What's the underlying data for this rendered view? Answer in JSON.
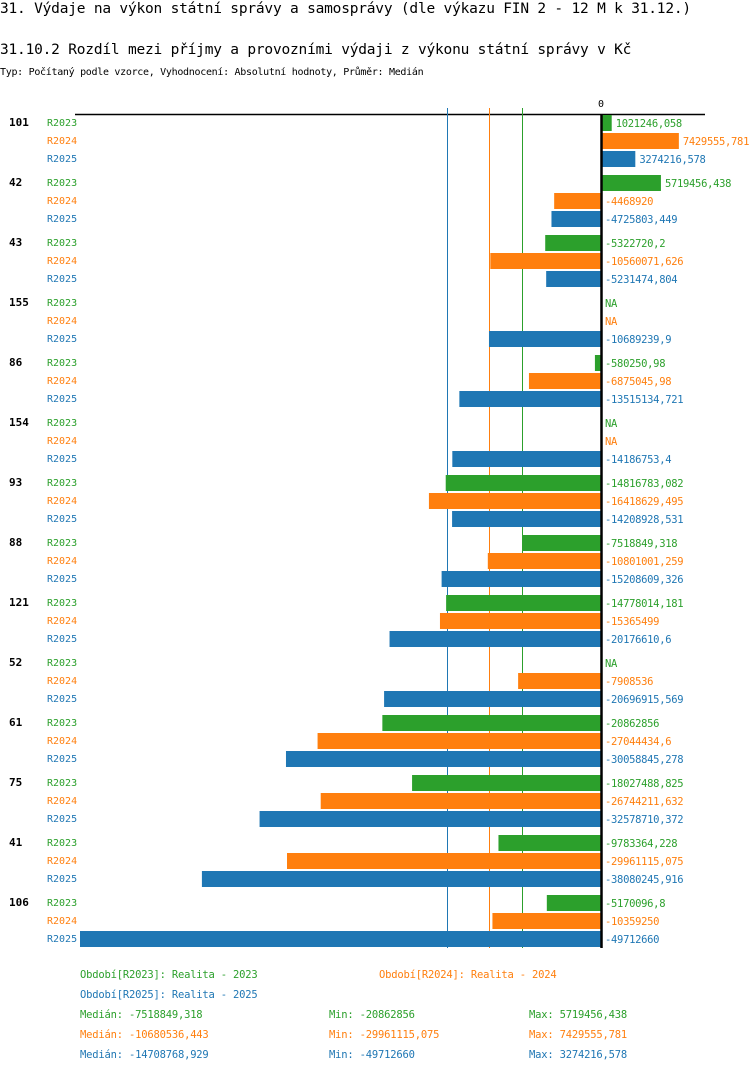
{
  "header": {
    "title": "31. Výdaje na výkon státní správy a samosprávy (dle výkazu FIN 2 - 12 M k 31.12.)",
    "subtitle": "31.10.2 Rozdíl mezi příjmy a provozními výdaji z výkonu státní správy v Kč",
    "info": "Typ: Počítaný podle vzorce, Vyhodnocení: Absolutní hodnoty, Průměr: Medián"
  },
  "colors": {
    "R2023": "#2ca02c",
    "R2024": "#ff7f0e",
    "R2025": "#1f77b4",
    "axis": "#000000"
  },
  "chart_data": {
    "type": "bar",
    "orientation": "horizontal",
    "title": "31.10.2 Rozdíl mezi příjmy a provozními výdaji z výkonu státní správy v Kč",
    "zero_label": "0",
    "xlim": [
      -49712660,
      7429555.781
    ],
    "series_names": [
      "R2023",
      "R2024",
      "R2025"
    ],
    "groups": [
      {
        "label": "101",
        "values": [
          {
            "v": 1021246.058,
            "t": "1021246,058"
          },
          {
            "v": 7429555.781,
            "t": "7429555,781"
          },
          {
            "v": 3274216.578,
            "t": "3274216,578"
          }
        ]
      },
      {
        "label": "42",
        "values": [
          {
            "v": 5719456.438,
            "t": "5719456,438"
          },
          {
            "v": -4468920,
            "t": "-4468920"
          },
          {
            "v": -4725803.449,
            "t": "-4725803,449"
          }
        ]
      },
      {
        "label": "43",
        "values": [
          {
            "v": -5322720.2,
            "t": "-5322720,2"
          },
          {
            "v": -10560071.626,
            "t": "-10560071,626"
          },
          {
            "v": -5231474.804,
            "t": "-5231474,804"
          }
        ]
      },
      {
        "label": "155",
        "values": [
          {
            "v": null,
            "t": "NA"
          },
          {
            "v": null,
            "t": "NA"
          },
          {
            "v": -10689239.9,
            "t": "-10689239,9"
          }
        ]
      },
      {
        "label": "86",
        "values": [
          {
            "v": -580250.98,
            "t": "-580250,98"
          },
          {
            "v": -6875045.98,
            "t": "-6875045,98"
          },
          {
            "v": -13515134.721,
            "t": "-13515134,721"
          }
        ]
      },
      {
        "label": "154",
        "values": [
          {
            "v": null,
            "t": "NA"
          },
          {
            "v": null,
            "t": "NA"
          },
          {
            "v": -14186753.4,
            "t": "-14186753,4"
          }
        ]
      },
      {
        "label": "93",
        "values": [
          {
            "v": -14816783.082,
            "t": "-14816783,082"
          },
          {
            "v": -16418629.495,
            "t": "-16418629,495"
          },
          {
            "v": -14208928.531,
            "t": "-14208928,531"
          }
        ]
      },
      {
        "label": "88",
        "values": [
          {
            "v": -7518849.318,
            "t": "-7518849,318"
          },
          {
            "v": -10801001.259,
            "t": "-10801001,259"
          },
          {
            "v": -15208609.326,
            "t": "-15208609,326"
          }
        ]
      },
      {
        "label": "121",
        "values": [
          {
            "v": -14778014.181,
            "t": "-14778014,181"
          },
          {
            "v": -15365499,
            "t": "-15365499"
          },
          {
            "v": -20176610.6,
            "t": "-20176610,6"
          }
        ]
      },
      {
        "label": "52",
        "values": [
          {
            "v": null,
            "t": "NA"
          },
          {
            "v": -7908536,
            "t": "-7908536"
          },
          {
            "v": -20696915.569,
            "t": "-20696915,569"
          }
        ]
      },
      {
        "label": "61",
        "values": [
          {
            "v": -20862856,
            "t": "-20862856"
          },
          {
            "v": -27044434.6,
            "t": "-27044434,6"
          },
          {
            "v": -30058845.278,
            "t": "-30058845,278"
          }
        ]
      },
      {
        "label": "75",
        "values": [
          {
            "v": -18027488.825,
            "t": "-18027488,825"
          },
          {
            "v": -26744211.632,
            "t": "-26744211,632"
          },
          {
            "v": -32578710.372,
            "t": "-32578710,372"
          }
        ]
      },
      {
        "label": "41",
        "values": [
          {
            "v": -9783364.228,
            "t": "-9783364,228"
          },
          {
            "v": -29961115.075,
            "t": "-29961115,075"
          },
          {
            "v": -38080245.916,
            "t": "-38080245,916"
          }
        ]
      },
      {
        "label": "106",
        "values": [
          {
            "v": -5170096.8,
            "t": "-5170096,8"
          },
          {
            "v": -10359250,
            "t": "-10359250"
          },
          {
            "v": -49712660,
            "t": "-49712660"
          }
        ]
      }
    ],
    "medians": {
      "R2023": -7518849.318,
      "R2024": -10680536.443,
      "R2025": -14708768.929
    },
    "legend": "bottom"
  },
  "legend": {
    "R2023": "Období[R2023]: Realita - 2023",
    "R2024": "Období[R2024]: Realita - 2024",
    "R2025": "Období[R2025]: Realita - 2025"
  },
  "stats": {
    "R2023": {
      "median": "Medián: -7518849,318",
      "min": "Min: -20862856",
      "max": "Max: 5719456,438"
    },
    "R2024": {
      "median": "Medián: -10680536,443",
      "min": "Min: -29961115,075",
      "max": "Max: 7429555,781"
    },
    "R2025": {
      "median": "Medián: -14708768,929",
      "min": "Min: -49712660",
      "max": "Max: 3274216,578"
    }
  }
}
